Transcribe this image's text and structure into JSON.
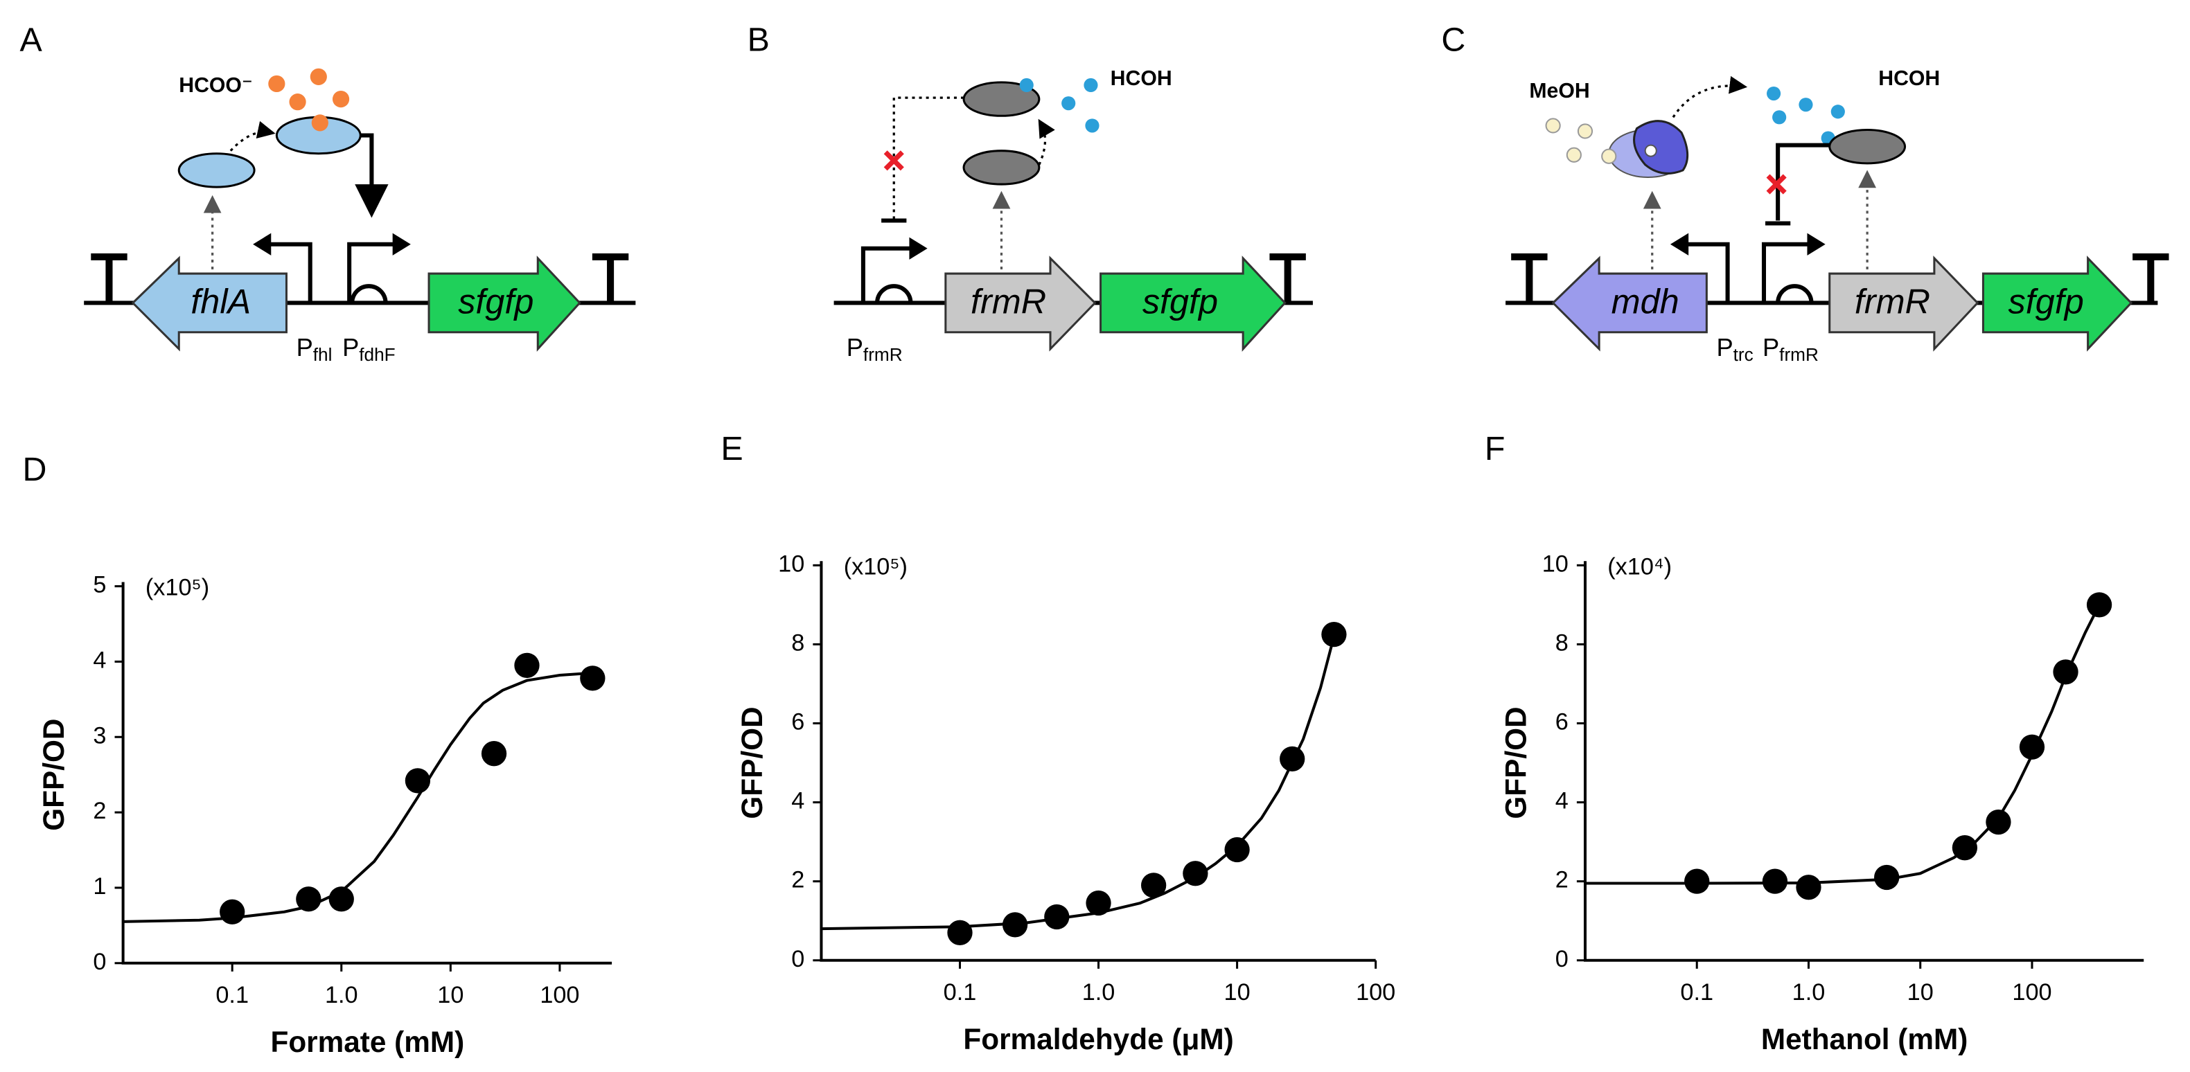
{
  "diagrams": [
    {
      "label": "A",
      "molecules": [
        "HCOO⁻"
      ],
      "genes": [
        "fhlA",
        "sfgfp"
      ],
      "promoters": [
        {
          "main": "P",
          "sub": "fhl"
        },
        {
          "main": "P",
          "sub": "fdhF"
        }
      ]
    },
    {
      "label": "B",
      "molecules": [
        "HCOH"
      ],
      "genes": [
        "frmR",
        "sfgfp"
      ],
      "promoters": [
        {
          "main": "P",
          "sub": "frmR"
        }
      ]
    },
    {
      "label": "C",
      "molecules": [
        "MeOH",
        "HCOH"
      ],
      "genes": [
        "mdh",
        "frmR",
        "sfgfp"
      ],
      "promoters": [
        {
          "main": "P",
          "sub": "trc"
        },
        {
          "main": "P",
          "sub": "frmR"
        }
      ]
    }
  ],
  "chart_data": [
    {
      "type": "scatter",
      "label": "D",
      "annotation": "(x10⁵)",
      "xlabel": "Formate (mM)",
      "ylabel": "GFP/OD",
      "xscale": "log",
      "xlim": [
        0.01,
        300
      ],
      "xticks": [
        0.1,
        {
          "value": 1,
          "label": "1.0"
        },
        10,
        100
      ],
      "ylim": [
        0,
        5
      ],
      "yticks": [
        0,
        1,
        2,
        3,
        4,
        5
      ],
      "series": [
        {
          "color": "#000000",
          "x": [
            0.1,
            0.5,
            1,
            5,
            25,
            50,
            200
          ],
          "values": [
            0.68,
            0.85,
            0.85,
            2.42,
            2.78,
            3.95,
            3.78
          ]
        },
        {
          "color": "#000000",
          "style": "line",
          "x": [
            0.01,
            0.05,
            0.1,
            0.3,
            0.5,
            1,
            2,
            3,
            5,
            7,
            10,
            15,
            20,
            30,
            50,
            100,
            200
          ],
          "values": [
            0.55,
            0.57,
            0.6,
            0.68,
            0.75,
            0.95,
            1.35,
            1.7,
            2.2,
            2.55,
            2.9,
            3.25,
            3.45,
            3.62,
            3.75,
            3.82,
            3.85
          ]
        }
      ]
    },
    {
      "type": "scatter",
      "label": "E",
      "annotation": "(x10⁵)",
      "xlabel": "Formaldehyde (μM)",
      "ylabel": "GFP/OD",
      "xscale": "log",
      "xlim": [
        0.01,
        100
      ],
      "xticks": [
        0.1,
        {
          "value": 1,
          "label": "1.0"
        },
        10,
        100
      ],
      "ylim": [
        0,
        10
      ],
      "yticks": [
        0,
        2,
        4,
        6,
        8,
        10
      ],
      "series": [
        {
          "color": "#000000",
          "x": [
            0.1,
            0.25,
            0.5,
            1,
            2.5,
            5,
            10,
            25,
            50
          ],
          "values": [
            0.7,
            0.9,
            1.1,
            1.45,
            1.9,
            2.2,
            2.8,
            5.1,
            8.25
          ]
        },
        {
          "color": "#000000",
          "style": "line",
          "x": [
            0.01,
            0.1,
            0.3,
            1,
            2,
            3,
            5,
            7,
            10,
            15,
            20,
            30,
            40,
            50
          ],
          "values": [
            0.8,
            0.85,
            0.95,
            1.2,
            1.45,
            1.7,
            2.1,
            2.45,
            2.9,
            3.6,
            4.3,
            5.6,
            6.9,
            8.2
          ]
        }
      ]
    },
    {
      "type": "scatter",
      "label": "F",
      "annotation": "(x10⁴)",
      "xlabel": "Methanol (mM)",
      "ylabel": "GFP/OD",
      "xscale": "log",
      "xlim": [
        0.01,
        1000
      ],
      "xticks": [
        0.1,
        {
          "value": 1,
          "label": "1.0"
        },
        10,
        100
      ],
      "ylim": [
        0,
        10
      ],
      "yticks": [
        0,
        2,
        4,
        6,
        8,
        10
      ],
      "series": [
        {
          "color": "#000000",
          "x": [
            0.1,
            0.5,
            1,
            5,
            25,
            50,
            100,
            200,
            400
          ],
          "values": [
            2.0,
            2.0,
            1.85,
            2.1,
            2.85,
            3.5,
            5.4,
            7.3,
            9.0
          ]
        },
        {
          "color": "#000000",
          "style": "line",
          "x": [
            0.01,
            0.1,
            1,
            5,
            10,
            20,
            30,
            50,
            70,
            100,
            150,
            200,
            300,
            400
          ],
          "values": [
            1.95,
            1.95,
            1.96,
            2.05,
            2.2,
            2.6,
            2.95,
            3.6,
            4.3,
            5.2,
            6.3,
            7.2,
            8.3,
            9.0
          ]
        }
      ]
    }
  ]
}
